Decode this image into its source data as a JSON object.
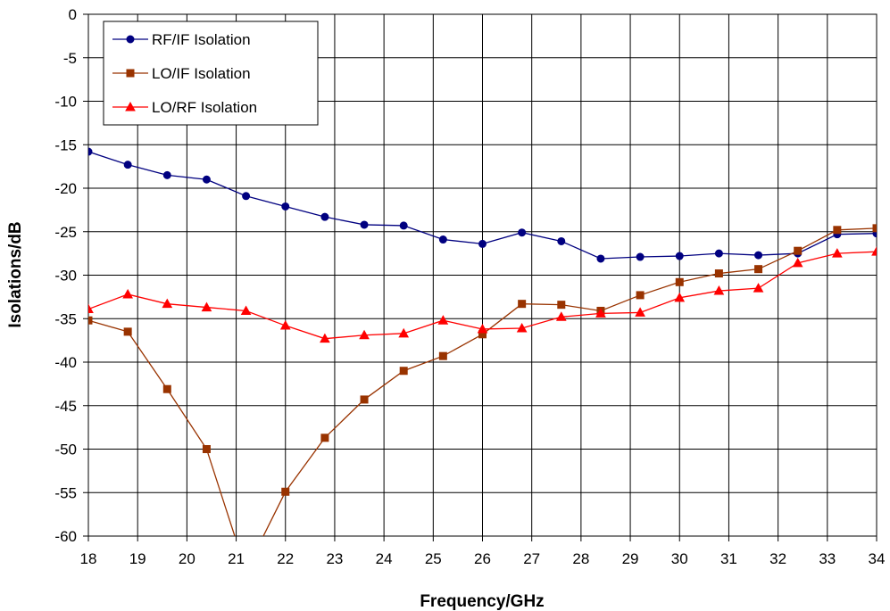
{
  "chart_data": {
    "type": "line",
    "title": "",
    "xlabel": "Frequency/GHz",
    "ylabel": "Isolations/dB",
    "xlim": [
      18,
      34
    ],
    "ylim": [
      -60,
      0
    ],
    "xticks": [
      "18",
      "19",
      "20",
      "21",
      "22",
      "23",
      "24",
      "25",
      "26",
      "27",
      "28",
      "29",
      "30",
      "31",
      "32",
      "33",
      "34"
    ],
    "yticks": [
      "0",
      "-5",
      "-10",
      "-15",
      "-20",
      "-25",
      "-30",
      "-35",
      "-40",
      "-45",
      "-50",
      "-55",
      "-60"
    ],
    "grid": true,
    "legend_position": "top-left",
    "series": [
      {
        "name": "RF/IF Isolation",
        "color": "#000080",
        "marker": "circle",
        "x": [
          18,
          18.8,
          19.6,
          20.4,
          21.2,
          22,
          22.8,
          23.6,
          24.4,
          25.2,
          26,
          26.8,
          27.6,
          28.4,
          29.2,
          30,
          30.8,
          31.6,
          32.4,
          33.2,
          34
        ],
        "y": [
          -15.8,
          -17.3,
          -18.5,
          -19,
          -20.9,
          -22.1,
          -23.3,
          -24.2,
          -24.3,
          -25.9,
          -26.4,
          -25.1,
          -26.1,
          -28.1,
          -27.9,
          -27.8,
          -27.5,
          -27.7,
          -27.5,
          -25.3,
          -25.2
        ]
      },
      {
        "name": "LO/IF Isolation",
        "color": "#993300",
        "marker": "square",
        "x": [
          18,
          18.8,
          19.6,
          20.4,
          21.2,
          22,
          22.8,
          23.6,
          24.4,
          25.2,
          26,
          26.8,
          27.6,
          28.4,
          29.2,
          30,
          30.8,
          31.6,
          32.4,
          33.2,
          34
        ],
        "y": [
          -35.2,
          -36.5,
          -43.1,
          -50,
          -64,
          -54.9,
          -48.7,
          -44.3,
          -41,
          -39.3,
          -36.8,
          -33.3,
          -33.4,
          -34.1,
          -32.3,
          -30.8,
          -29.8,
          -29.3,
          -27.2,
          -24.8,
          -24.6
        ]
      },
      {
        "name": "LO/RF Isolation",
        "color": "#FF0000",
        "marker": "triangle",
        "x": [
          18,
          18.8,
          19.6,
          20.4,
          21.2,
          22,
          22.8,
          23.6,
          24.4,
          25.2,
          26,
          26.8,
          27.6,
          28.4,
          29.2,
          30,
          30.8,
          31.6,
          32.4,
          33.2,
          34
        ],
        "y": [
          -33.9,
          -32.2,
          -33.3,
          -33.7,
          -34.1,
          -35.8,
          -37.3,
          -36.9,
          -36.7,
          -35.2,
          -36.2,
          -36.1,
          -34.8,
          -34.4,
          -34.3,
          -32.6,
          -31.8,
          -31.5,
          -28.6,
          -27.5,
          -27.3
        ]
      }
    ]
  }
}
